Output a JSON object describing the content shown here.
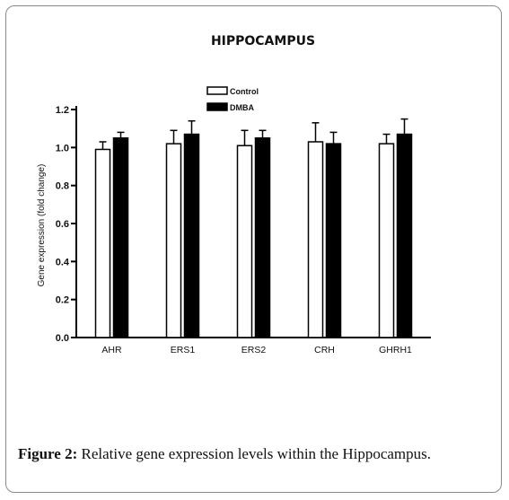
{
  "caption": {
    "label": "Figure 2:",
    "text": " Relative gene expression levels within the Hippocampus."
  },
  "chart_data": {
    "type": "bar",
    "title": "HIPPOCAMPUS",
    "xlabel": "",
    "ylabel": "Gene expression (fold change)",
    "ylim": [
      0,
      1.2
    ],
    "yticks": [
      "0.0",
      "0.2",
      "0.4",
      "0.6",
      "0.8",
      "1.0",
      "1.2"
    ],
    "categories": [
      "AHR",
      "ERS1",
      "ERS2",
      "CRH",
      "GHRH1"
    ],
    "legend_position": "top-center",
    "series": [
      {
        "name": "Control",
        "color": "#ffffff",
        "values": [
          0.99,
          1.02,
          1.01,
          1.03,
          1.02
        ],
        "errors": [
          0.04,
          0.07,
          0.08,
          0.1,
          0.05
        ]
      },
      {
        "name": "DMBA",
        "color": "#000000",
        "values": [
          1.05,
          1.07,
          1.05,
          1.02,
          1.07
        ],
        "errors": [
          0.03,
          0.07,
          0.04,
          0.06,
          0.08
        ]
      }
    ]
  }
}
